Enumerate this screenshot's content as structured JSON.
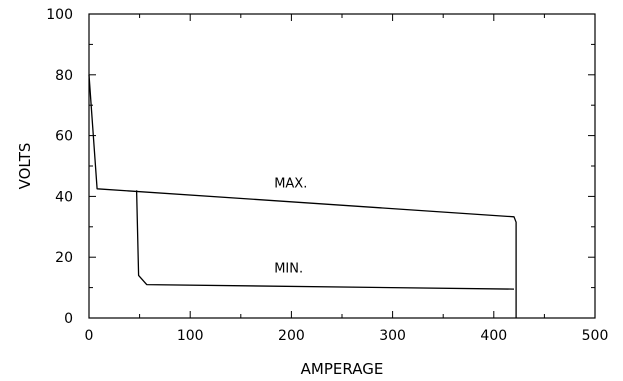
{
  "chart_data": {
    "type": "line",
    "title": "",
    "xlabel": "AMPERAGE",
    "ylabel": "VOLTS",
    "xlim": [
      0,
      500
    ],
    "ylim": [
      0,
      100
    ],
    "x_ticks": [
      0,
      100,
      200,
      300,
      400,
      500
    ],
    "y_ticks": [
      0,
      20,
      40,
      60,
      80,
      100
    ],
    "x_tick_labels": [
      "0",
      "100",
      "200",
      "300",
      "400",
      "500"
    ],
    "y_tick_labels": [
      "0",
      "20",
      "40",
      "60",
      "80",
      "100"
    ],
    "grid": false,
    "legend": "none",
    "series": [
      {
        "name": "MAX.",
        "x": [
          0,
          8,
          420,
          422,
          422
        ],
        "y": [
          80,
          42.5,
          33.3,
          31.5,
          0
        ]
      },
      {
        "name": "MIN.",
        "x": [
          47,
          49,
          57,
          420
        ],
        "y": [
          42,
          14,
          11,
          9.5
        ]
      }
    ],
    "annotations": [
      {
        "text": "MAX.",
        "x": 183,
        "y": 43
      },
      {
        "text": "MIN.",
        "x": 183,
        "y": 15
      }
    ]
  }
}
